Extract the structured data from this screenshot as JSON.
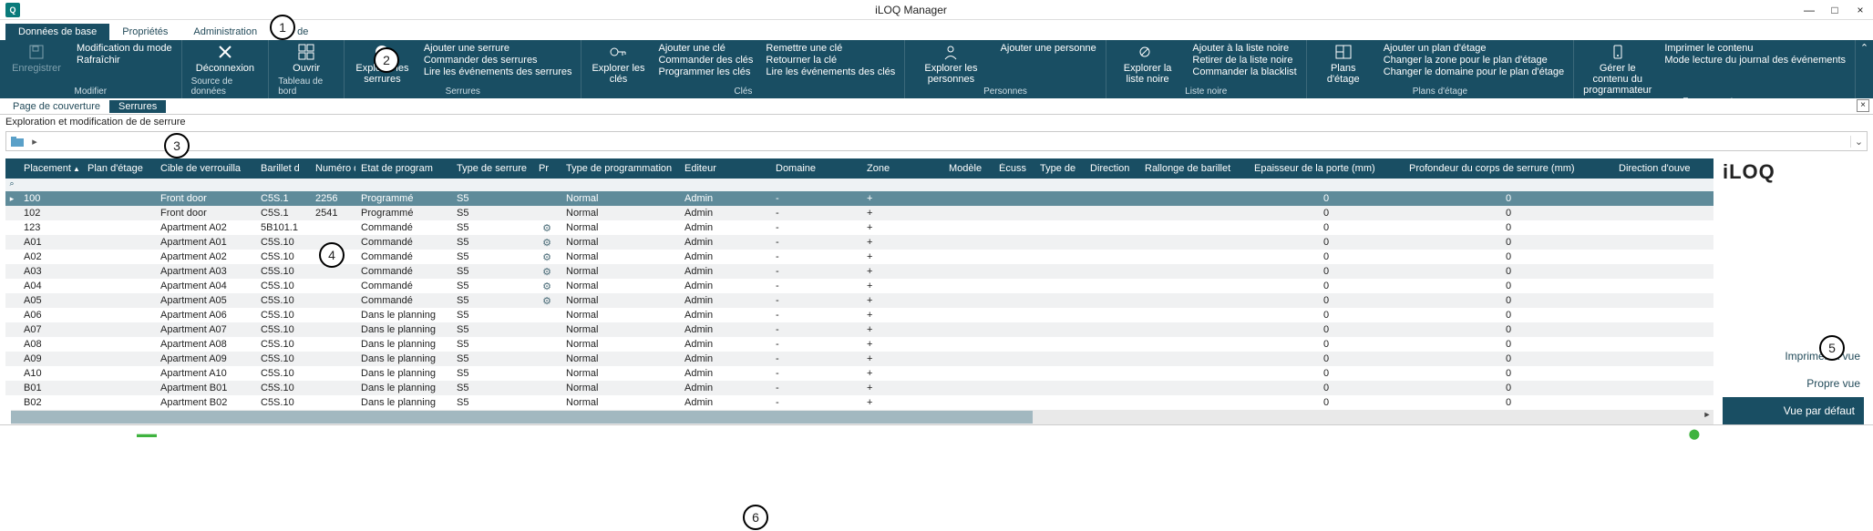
{
  "colors": {
    "ribbon": "#194e63",
    "row_odd": "#f0f1f2",
    "row_selected": "#5f8b9a"
  },
  "app": {
    "title": "iLOQ Manager"
  },
  "win_buttons": {
    "min": "—",
    "max": "□",
    "close": "×"
  },
  "tabs": {
    "base": "Données de base",
    "props": "Propriétés",
    "admin": "Administration",
    "extra": "de"
  },
  "ribbon": {
    "modifier": {
      "enregistrer": "Enregistrer",
      "modification": "Modification du mode",
      "rafraichir": "Rafraîchir",
      "group": "Modifier"
    },
    "source": {
      "deconnexion": "Déconnexion",
      "group": "Source de données"
    },
    "tableau": {
      "ouvrir": "Ouvrir",
      "group": "Tableau de bord"
    },
    "serrures": {
      "explorer": "Explorer les serrures",
      "ajouter": "Ajouter une serrure",
      "commander": "Commander des serrures",
      "lire": "Lire les événements des serrures",
      "group": "Serrures"
    },
    "cles": {
      "explorer": "Explorer les clés",
      "ajouter": "Ajouter une clé",
      "commander": "Commander des clés",
      "programmer": "Programmer les clés",
      "remettre": "Remettre une clé",
      "retourner": "Retourner la clé",
      "lire": "Lire les événements des clés",
      "group": "Clés"
    },
    "personnes": {
      "explorer": "Explorer les personnes",
      "ajouter": "Ajouter une personne",
      "group": "Personnes"
    },
    "listenoire": {
      "explorer": "Explorer la liste noire",
      "ajouter": "Ajouter à la liste noire",
      "retirer": "Retirer de la liste noire",
      "commander": "Commander la blacklist",
      "group": "Liste noire"
    },
    "plans": {
      "plans": "Plans d'étage",
      "ajouter": "Ajouter un plan d'étage",
      "zone": "Changer la zone pour le plan d'étage",
      "domaine": "Changer le domaine pour le plan d'étage",
      "group": "Plans d'étage"
    },
    "programmateur": {
      "gerer": "Gérer le contenu du programmateur",
      "imprimer": "Imprimer le contenu",
      "lecture": "Mode lecture du journal des événements",
      "group": "Programmateur"
    }
  },
  "subtabs": {
    "cover": "Page de couverture",
    "serrures": "Serrures"
  },
  "description": "Exploration et modification de                  de serrure",
  "breadcrumb": {
    "sep": "▸"
  },
  "brand": "iLOQ",
  "sidebar_actions": {
    "imprimer": "Imprimer la vue",
    "propre": "Propre vue",
    "defaut": "Vue par défaut"
  },
  "columns": {
    "placement": "Placement",
    "plan": "Plan d'étage",
    "cible": "Cible de verrouilla",
    "barillet": "Barillet d",
    "numero": "Numéro d",
    "etat": "Etat de program",
    "type": "Type de serrure",
    "pr": "Pr",
    "typeprog": "Type de programmation",
    "editeur": "Editeur",
    "domaine": "Domaine",
    "zone": "Zone",
    "modele": "Modèle",
    "ecuss": "Écuss",
    "typede": "Type de",
    "direction": "Direction",
    "rallonge": "Rallonge de barillet",
    "epaisseur": "Epaisseur de la porte (mm)",
    "profondeur": "Profondeur du corps de serrure (mm)",
    "direction2": "Direction d'ouve",
    "sort_indicator": "▲"
  },
  "rows": [
    {
      "placement": "100",
      "plan": "",
      "cible": "Front door",
      "barillet": "C5S.1",
      "numero": "2256",
      "etat": "Programmé",
      "type": "S5",
      "pr": "",
      "typeprog": "Normal",
      "editeur": "Admin",
      "domaine": "-",
      "zone": "+",
      "epaisseur": "0",
      "profondeur": "0",
      "selected": true
    },
    {
      "placement": "102",
      "plan": "",
      "cible": "Front door",
      "barillet": "C5S.1",
      "numero": "2541",
      "etat": "Programmé",
      "type": "S5",
      "pr": "",
      "typeprog": "Normal",
      "editeur": "Admin",
      "domaine": "-",
      "zone": "+",
      "epaisseur": "0",
      "profondeur": "0"
    },
    {
      "placement": "123",
      "plan": "",
      "cible": "Apartment A02",
      "barillet": "5B101.1",
      "numero": "",
      "etat": "Commandé",
      "type": "S5",
      "pr": "⚙",
      "typeprog": "Normal",
      "editeur": "Admin",
      "domaine": "-",
      "zone": "+",
      "epaisseur": "0",
      "profondeur": "0"
    },
    {
      "placement": "A01",
      "plan": "",
      "cible": "Apartment A01",
      "barillet": "C5S.10",
      "numero": "",
      "etat": "Commandé",
      "type": "S5",
      "pr": "⚙",
      "typeprog": "Normal",
      "editeur": "Admin",
      "domaine": "-",
      "zone": "+",
      "epaisseur": "0",
      "profondeur": "0"
    },
    {
      "placement": "A02",
      "plan": "",
      "cible": "Apartment A02",
      "barillet": "C5S.10",
      "numero": "",
      "etat": "Commandé",
      "type": "S5",
      "pr": "⚙",
      "typeprog": "Normal",
      "editeur": "Admin",
      "domaine": "-",
      "zone": "+",
      "epaisseur": "0",
      "profondeur": "0"
    },
    {
      "placement": "A03",
      "plan": "",
      "cible": "Apartment A03",
      "barillet": "C5S.10",
      "numero": "",
      "etat": "Commandé",
      "type": "S5",
      "pr": "⚙",
      "typeprog": "Normal",
      "editeur": "Admin",
      "domaine": "-",
      "zone": "+",
      "epaisseur": "0",
      "profondeur": "0"
    },
    {
      "placement": "A04",
      "plan": "",
      "cible": "Apartment A04",
      "barillet": "C5S.10",
      "numero": "",
      "etat": "Commandé",
      "type": "S5",
      "pr": "⚙",
      "typeprog": "Normal",
      "editeur": "Admin",
      "domaine": "-",
      "zone": "+",
      "epaisseur": "0",
      "profondeur": "0"
    },
    {
      "placement": "A05",
      "plan": "",
      "cible": "Apartment A05",
      "barillet": "C5S.10",
      "numero": "",
      "etat": "Commandé",
      "type": "S5",
      "pr": "⚙",
      "typeprog": "Normal",
      "editeur": "Admin",
      "domaine": "-",
      "zone": "+",
      "epaisseur": "0",
      "profondeur": "0"
    },
    {
      "placement": "A06",
      "plan": "",
      "cible": "Apartment A06",
      "barillet": "C5S.10",
      "numero": "",
      "etat": "Dans le planning",
      "type": "S5",
      "pr": "",
      "typeprog": "Normal",
      "editeur": "Admin",
      "domaine": "-",
      "zone": "+",
      "epaisseur": "0",
      "profondeur": "0"
    },
    {
      "placement": "A07",
      "plan": "",
      "cible": "Apartment A07",
      "barillet": "C5S.10",
      "numero": "",
      "etat": "Dans le planning",
      "type": "S5",
      "pr": "",
      "typeprog": "Normal",
      "editeur": "Admin",
      "domaine": "-",
      "zone": "+",
      "epaisseur": "0",
      "profondeur": "0"
    },
    {
      "placement": "A08",
      "plan": "",
      "cible": "Apartment A08",
      "barillet": "C5S.10",
      "numero": "",
      "etat": "Dans le planning",
      "type": "S5",
      "pr": "",
      "typeprog": "Normal",
      "editeur": "Admin",
      "domaine": "-",
      "zone": "+",
      "epaisseur": "0",
      "profondeur": "0"
    },
    {
      "placement": "A09",
      "plan": "",
      "cible": "Apartment A09",
      "barillet": "C5S.10",
      "numero": "",
      "etat": "Dans le planning",
      "type": "S5",
      "pr": "",
      "typeprog": "Normal",
      "editeur": "Admin",
      "domaine": "-",
      "zone": "+",
      "epaisseur": "0",
      "profondeur": "0"
    },
    {
      "placement": "A10",
      "plan": "",
      "cible": "Apartment A10",
      "barillet": "C5S.10",
      "numero": "",
      "etat": "Dans le planning",
      "type": "S5",
      "pr": "",
      "typeprog": "Normal",
      "editeur": "Admin",
      "domaine": "-",
      "zone": "+",
      "epaisseur": "0",
      "profondeur": "0"
    },
    {
      "placement": "B01",
      "plan": "",
      "cible": "Apartment B01",
      "barillet": "C5S.10",
      "numero": "",
      "etat": "Dans le planning",
      "type": "S5",
      "pr": "",
      "typeprog": "Normal",
      "editeur": "Admin",
      "domaine": "-",
      "zone": "+",
      "epaisseur": "0",
      "profondeur": "0"
    },
    {
      "placement": "B02",
      "plan": "",
      "cible": "Apartment B02",
      "barillet": "C5S.10",
      "numero": "",
      "etat": "Dans le planning",
      "type": "S5",
      "pr": "",
      "typeprog": "Normal",
      "editeur": "Admin",
      "domaine": "-",
      "zone": "+",
      "epaisseur": "0",
      "profondeur": "0"
    }
  ],
  "callouts": {
    "c1": "1",
    "c2": "2",
    "c3": "3",
    "c4": "4",
    "c5": "5",
    "c6": "6"
  }
}
